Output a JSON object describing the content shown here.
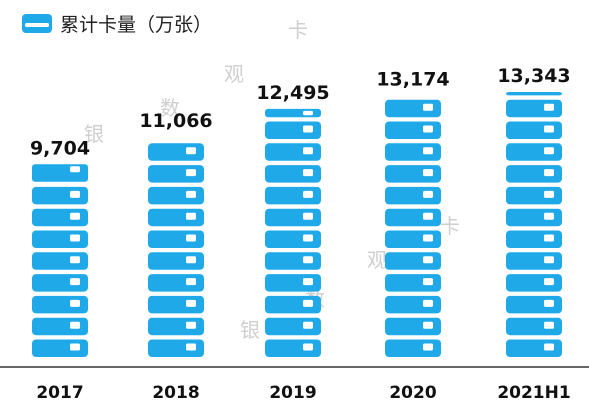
{
  "legend": {
    "label": "累计卡量（万张）"
  },
  "watermark": [
    "银",
    "数",
    "观",
    "卡",
    "银",
    "数",
    "观",
    "卡"
  ],
  "colors": {
    "card": "#1fa9e8",
    "chip": "#ffffff",
    "axis": "#333333",
    "text": "#111111"
  },
  "chart_data": {
    "type": "bar",
    "categories": [
      "2017",
      "2018",
      "2019",
      "2020",
      "2021H1"
    ],
    "values": [
      9704,
      11066,
      12495,
      13174,
      13343
    ],
    "value_labels": [
      "9,704",
      "11,066",
      "12,495",
      "13,174",
      "13,343"
    ],
    "series": [
      {
        "name": "累计卡量（万张）",
        "values": [
          9704,
          11066,
          12495,
          13174,
          13343
        ]
      }
    ],
    "ylim": [
      0,
      13343
    ],
    "grid": false,
    "legend_position": "top-left"
  }
}
